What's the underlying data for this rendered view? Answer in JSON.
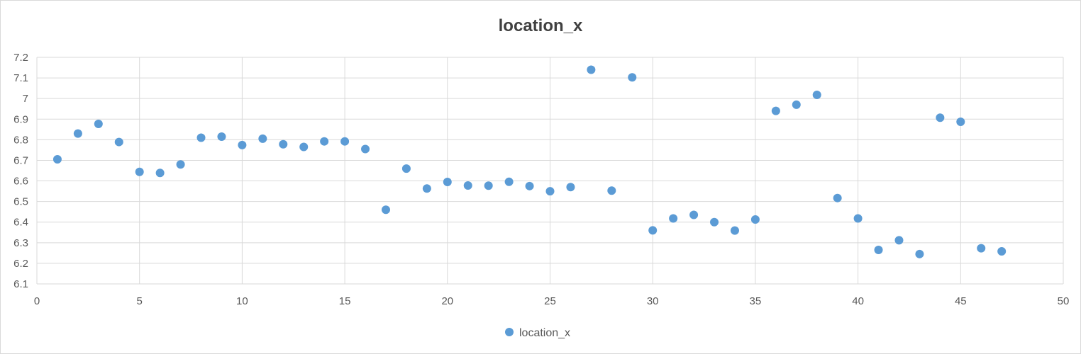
{
  "chart_data": {
    "type": "scatter",
    "title": "location_x",
    "xlabel": "",
    "ylabel": "",
    "xlim": [
      0,
      50
    ],
    "ylim": [
      6.1,
      7.2
    ],
    "xticks": [
      0,
      5,
      10,
      15,
      20,
      25,
      30,
      35,
      40,
      45,
      50
    ],
    "yticks": [
      6.1,
      6.2,
      6.3,
      6.4,
      6.5,
      6.6,
      6.7,
      6.8,
      6.9,
      7,
      7.1,
      7.2
    ],
    "grid": true,
    "legend": "bottom",
    "series": [
      {
        "name": "location_x",
        "color": "#5b9bd5",
        "x": [
          1,
          2,
          3,
          4,
          5,
          6,
          7,
          8,
          9,
          10,
          11,
          12,
          13,
          14,
          15,
          16,
          17,
          18,
          19,
          20,
          21,
          22,
          23,
          24,
          25,
          26,
          27,
          28,
          29,
          30,
          31,
          32,
          33,
          34,
          35,
          36,
          37,
          38,
          39,
          40,
          41,
          42,
          43,
          44,
          45,
          46,
          47
        ],
        "y": [
          6.705,
          6.83,
          6.877,
          6.789,
          6.644,
          6.639,
          6.68,
          6.81,
          6.815,
          6.774,
          6.805,
          6.778,
          6.765,
          6.792,
          6.792,
          6.755,
          6.46,
          6.66,
          6.563,
          6.595,
          6.578,
          6.577,
          6.596,
          6.575,
          6.55,
          6.57,
          7.14,
          6.553,
          7.103,
          6.36,
          6.418,
          6.435,
          6.4,
          6.359,
          6.413,
          6.94,
          6.97,
          7.018,
          6.517,
          6.418,
          6.265,
          6.312,
          6.245,
          6.907,
          6.887,
          6.273,
          6.258
        ]
      }
    ]
  }
}
